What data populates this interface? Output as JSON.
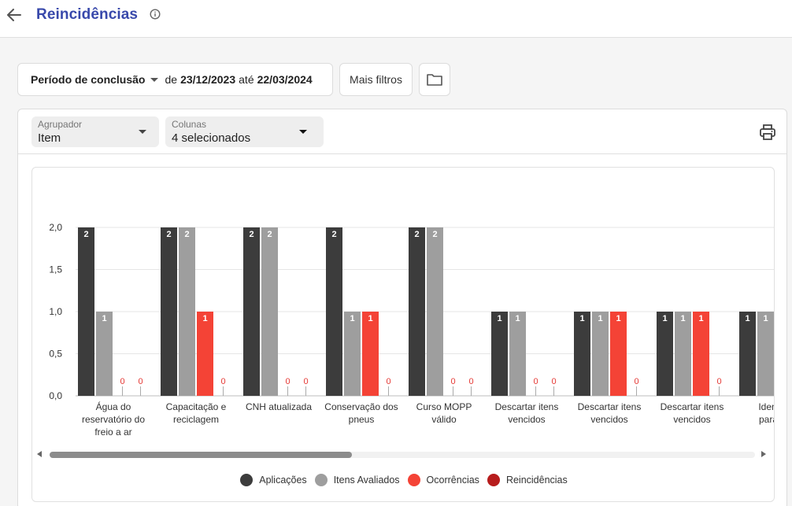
{
  "header": {
    "title": "Reincidências"
  },
  "filters": {
    "period_label": "Período de conclusão",
    "from_word": "de",
    "from_date": "23/12/2023",
    "until_word": "até",
    "to_date": "22/03/2024",
    "more_filters": "Mais filtros"
  },
  "controls": {
    "group_label": "Agrupador",
    "group_value": "Item",
    "columns_label": "Colunas",
    "columns_value": "4 selecionados"
  },
  "colors": {
    "aplicacoes": "#3c3c3c",
    "itens_avaliados": "#9e9e9e",
    "ocorrencias": "#f44336",
    "reincidencias": "#b71c1c",
    "accent": "#3949ab"
  },
  "chart_data": {
    "type": "bar",
    "ylim": [
      0,
      2
    ],
    "yticks": [
      "0,0",
      "0,5",
      "1,0",
      "1,5",
      "2,0"
    ],
    "categories": [
      [
        "Água do",
        "reservatório do",
        "freio a ar"
      ],
      [
        "Capacitação e",
        "reciclagem"
      ],
      [
        "CNH atualizada"
      ],
      [
        "Conservação dos",
        "pneus"
      ],
      [
        "Curso MOPP",
        "válido"
      ],
      [
        "Descartar itens",
        "vencidos"
      ],
      [
        "Descartar itens",
        "vencidos"
      ],
      [
        "Descartar itens",
        "vencidos"
      ],
      [
        "Identific",
        "para co"
      ]
    ],
    "series": [
      {
        "name": "Aplicações",
        "values": [
          2,
          2,
          2,
          2,
          2,
          1,
          1,
          1,
          1
        ]
      },
      {
        "name": "Itens Avaliados",
        "values": [
          1,
          2,
          2,
          1,
          2,
          1,
          1,
          1,
          1
        ]
      },
      {
        "name": "Ocorrências",
        "values": [
          0,
          1,
          0,
          1,
          0,
          0,
          1,
          1,
          null
        ]
      },
      {
        "name": "Reincidências",
        "values": [
          0,
          0,
          0,
          0,
          0,
          0,
          0,
          0,
          null
        ]
      }
    ]
  },
  "legend": [
    "Aplicações",
    "Itens Avaliados",
    "Ocorrências",
    "Reincidências"
  ]
}
